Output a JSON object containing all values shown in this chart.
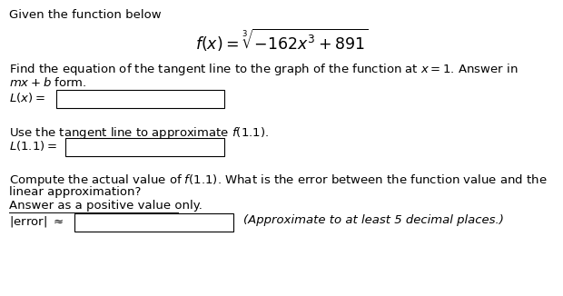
{
  "bg_color": "#ffffff",
  "text_color": "#000000",
  "box_color": "#000000",
  "line_title": "Given the function below",
  "formula": "$f(x) = \\sqrt[3]{-162x^3 + 891}$",
  "line2a": "Find the equation of the tangent line to the graph of the function at $x = 1$. Answer in",
  "line2b": "$mx + b$ form.",
  "label_Lx": "$L(x) =$",
  "line3": "Use the tangent line to approximate $f(1.1)$.",
  "label_L11": "$L(1.1) =$",
  "line4a": "Compute the actual value of $f(1.1)$. What is the error between the function value and the",
  "line4b": "linear approximation?",
  "line4c": "Answer as a positive value only.",
  "label_error": "$|$error$|$ $\\approx$",
  "approx_note": "(Approximate to at least 5 decimal places.)",
  "fs_body": 9.5,
  "fs_formula": 12.5
}
